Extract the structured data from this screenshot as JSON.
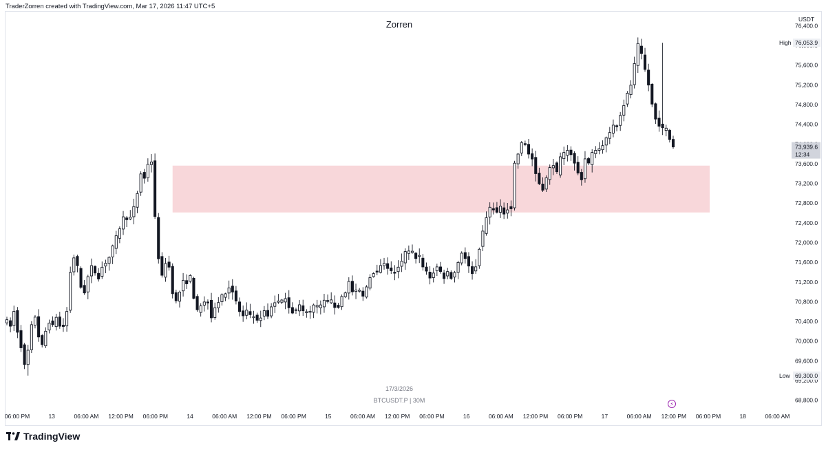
{
  "caption": "TraderZorren created with TradingView.com, Mar 17, 2026 11:47 UTC+5",
  "logo_text": "TradingView",
  "icons": {
    "logo": "tradingview-logo-icon",
    "alert": "lightning-alert-icon"
  },
  "colors": {
    "zone": "#f8d7da",
    "candle": "#131722",
    "axis_text": "#131722",
    "muted": "#787b86"
  },
  "chart_data": {
    "type": "candlestick",
    "title": "Zorren",
    "symbol": "BTCUSDT.P | 30M",
    "date_label": "17/3/2026",
    "currency": "USDT",
    "ylim": [
      68600,
      76600
    ],
    "y_ticks": [
      "76,400.0",
      "76,000.0",
      "75,600.0",
      "75,200.0",
      "74,800.0",
      "74,400.0",
      "74,000.0",
      "73,600.0",
      "73,200.0",
      "72,800.0",
      "72,400.0",
      "72,000.0",
      "71,600.0",
      "71,200.0",
      "70,800.0",
      "70,400.0",
      "70,000.0",
      "69,600.0",
      "69,200.0",
      "68,800.0"
    ],
    "x_ticks": [
      "06:00 PM",
      "13",
      "06:00 AM",
      "12:00 PM",
      "06:00 PM",
      "14",
      "06:00 AM",
      "12:00 PM",
      "06:00 PM",
      "15",
      "06:00 AM",
      "12:00 PM",
      "06:00 PM",
      "16",
      "06:00 AM",
      "12:00 PM",
      "06:00 PM",
      "17",
      "06:00 AM",
      "12:00 PM",
      "06:00 PM",
      "18",
      "06:00 AM"
    ],
    "high": {
      "label": "High",
      "value": "76,053.9",
      "num": 76053.9
    },
    "low": {
      "label": "Low",
      "value": "69,300.0",
      "num": 69300.0
    },
    "last": {
      "value": "73,939.6",
      "countdown": "12:34",
      "num": 73939.6
    },
    "zone": {
      "top": 73560,
      "bottom": 72610,
      "start_index": 47,
      "end_index": 207
    },
    "path": [
      70400,
      70300,
      70600,
      70200,
      69900,
      69500,
      69800,
      70300,
      70500,
      70100,
      69900,
      70200,
      70400,
      70300,
      70500,
      70300,
      70300,
      70600,
      71400,
      71700,
      71500,
      71100,
      71000,
      71300,
      71500,
      71400,
      71300,
      71500,
      71600,
      71700,
      71900,
      72100,
      72300,
      72500,
      72500,
      72500,
      72700,
      73000,
      73400,
      73300,
      73600,
      73650,
      72500,
      71700,
      71300,
      71600,
      71500,
      71000,
      70800,
      71000,
      71200,
      71200,
      71300,
      70900,
      70600,
      70700,
      70800,
      70800,
      70500,
      70700,
      70800,
      70900,
      71000,
      71100,
      71000,
      70800,
      70600,
      70500,
      70600,
      70500,
      70500,
      70400,
      70500,
      70600,
      70500,
      70700,
      70800,
      70800,
      70800,
      70900,
      70700,
      70600,
      70600,
      70700,
      70600,
      70600,
      70600,
      70700,
      70700,
      70700,
      70800,
      70800,
      70800,
      70700,
      70700,
      70900,
      71000,
      71200,
      71000,
      71000,
      71000,
      70900,
      71100,
      71300,
      71400,
      71400,
      71500,
      71600,
      71500,
      71400,
      71400,
      71500,
      71600,
      71800,
      71800,
      71800,
      71700,
      71700,
      71500,
      71400,
      71300,
      71400,
      71500,
      71400,
      71300,
      71400,
      71300,
      71400,
      71600,
      71800,
      71700,
      71500,
      71400,
      71500,
      71900,
      72200,
      72500,
      72700,
      72700,
      72600,
      72700,
      72600,
      72700,
      72700,
      73600,
      73800,
      74000,
      74000,
      73800,
      73700,
      73400,
      73200,
      73100,
      73300,
      73500,
      73600,
      73400,
      73700,
      73800,
      73900,
      73800,
      73600,
      73400,
      73300,
      73700,
      73600,
      73800,
      73900,
      73900,
      74000,
      74100,
      74200,
      74400,
      74400,
      74600,
      74800,
      75000,
      75200,
      75600,
      76000,
      75800,
      75500,
      75200,
      74800,
      74500,
      74400,
      74300,
      74300,
      74100,
      73940
    ]
  }
}
